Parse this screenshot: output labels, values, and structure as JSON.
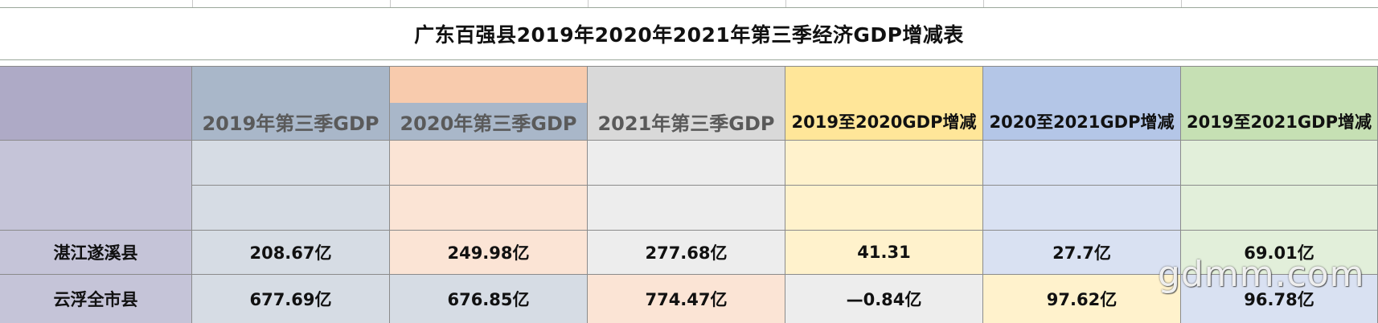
{
  "title": "广东百强县2019年2020年2021年第三季经济GDP增减表",
  "headers": [
    "2019年第三季GDP",
    "2020年第三季GDP",
    "2021年第三季GDP",
    "2019至2020GDP增减",
    "2020至2021GDP增减",
    "2019至2021GDP增减"
  ],
  "rows": [
    {
      "name": "湛江遂溪县",
      "values": [
        "208.67亿",
        "249.98亿",
        "277.68亿",
        "41.31",
        "27.7亿",
        "69.01亿"
      ]
    },
    {
      "name": "云浮全市县",
      "values": [
        "677.69亿",
        "676.85亿",
        "774.47亿",
        "—0.84亿",
        "97.62亿",
        "96.78亿"
      ]
    }
  ],
  "watermark": "gdmm.com",
  "colors": {
    "col1_header": "#a9b7c9",
    "col2_header": "#f8cbad",
    "col3_header": "#d9d9d9",
    "col4_header": "#ffe699",
    "col5_header": "#b4c6e7",
    "col6_header": "#c6e0b4",
    "label_col": "#aeaac6",
    "label_col_body": "#c5c4d8"
  }
}
